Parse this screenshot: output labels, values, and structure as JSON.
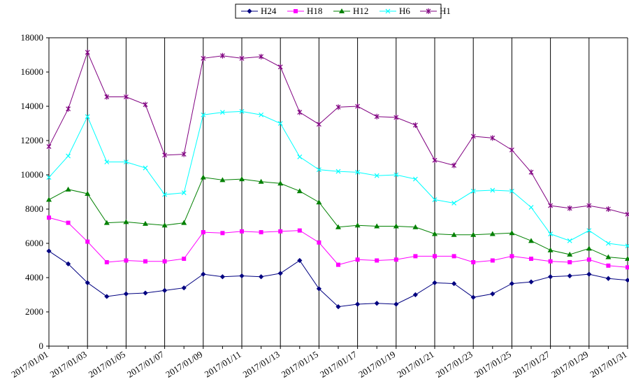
{
  "chart_data": {
    "type": "line",
    "categories": [
      "2017/01/01",
      "2017/01/02",
      "2017/01/03",
      "2017/01/04",
      "2017/01/05",
      "2017/01/06",
      "2017/01/07",
      "2017/01/08",
      "2017/01/09",
      "2017/01/10",
      "2017/01/11",
      "2017/01/12",
      "2017/01/13",
      "2017/01/14",
      "2017/01/15",
      "2017/01/16",
      "2017/01/17",
      "2017/01/18",
      "2017/01/19",
      "2017/01/20",
      "2017/01/21",
      "2017/01/22",
      "2017/01/23",
      "2017/01/24",
      "2017/01/25",
      "2017/01/26",
      "2017/01/27",
      "2017/01/28",
      "2017/01/29",
      "2017/01/30",
      "2017/01/31"
    ],
    "x_tick_labels": [
      "2017/01/01",
      "2017/01/03",
      "2017/01/05",
      "2017/01/07",
      "2017/01/09",
      "2017/01/11",
      "2017/01/13",
      "2017/01/15",
      "2017/01/17",
      "2017/01/19",
      "2017/01/21",
      "2017/01/23",
      "2017/01/25",
      "2017/01/27",
      "2017/01/29",
      "2017/01/31"
    ],
    "y_tick_labels": [
      "0",
      "2000",
      "4000",
      "6000",
      "8000",
      "10000",
      "12000",
      "14000",
      "16000",
      "18000"
    ],
    "ylim": [
      0,
      18000
    ],
    "grid": "vertical",
    "legend": "top",
    "title": "",
    "xlabel": "",
    "ylabel": "",
    "series": [
      {
        "name": "H24",
        "color": "#000080",
        "marker": "diamond",
        "values": [
          5550,
          4800,
          3700,
          2900,
          3050,
          3100,
          3250,
          3400,
          4200,
          4050,
          4100,
          4050,
          4250,
          5000,
          3350,
          2300,
          2450,
          2500,
          2450,
          3000,
          3700,
          3650,
          2850,
          3050,
          3650,
          3750,
          4050,
          4100,
          4200,
          3950,
          3850
        ]
      },
      {
        "name": "H18",
        "color": "#ff00ff",
        "marker": "square",
        "values": [
          7500,
          7200,
          6100,
          4900,
          5000,
          4950,
          4950,
          5100,
          6650,
          6600,
          6700,
          6650,
          6700,
          6750,
          6050,
          4750,
          5050,
          5000,
          5050,
          5250,
          5250,
          5250,
          4900,
          5000,
          5250,
          5100,
          4950,
          4900,
          5050,
          4700,
          4600
        ]
      },
      {
        "name": "H12",
        "color": "#008000",
        "marker": "triangle",
        "values": [
          8550,
          9150,
          8900,
          7200,
          7250,
          7150,
          7050,
          7200,
          9850,
          9700,
          9750,
          9600,
          9500,
          9050,
          8400,
          6950,
          7050,
          7000,
          7000,
          6950,
          6550,
          6500,
          6500,
          6550,
          6600,
          6150,
          5600,
          5350,
          5700,
          5200,
          5100
        ]
      },
      {
        "name": "H6",
        "color": "#00ffff",
        "marker": "x",
        "values": [
          9850,
          11100,
          13400,
          10750,
          10750,
          10400,
          8850,
          8950,
          13500,
          13650,
          13700,
          13500,
          13000,
          11050,
          10300,
          10200,
          10150,
          9950,
          10000,
          9750,
          8550,
          8350,
          9050,
          9100,
          9050,
          8100,
          6550,
          6150,
          6750,
          6000,
          5850
        ]
      },
      {
        "name": "H1",
        "color": "#800080",
        "marker": "star",
        "values": [
          11650,
          13850,
          17150,
          14550,
          14550,
          14100,
          11150,
          11200,
          16800,
          16950,
          16800,
          16900,
          16300,
          13650,
          12950,
          13950,
          14000,
          13400,
          13350,
          12900,
          10850,
          10550,
          12250,
          12150,
          11450,
          10150,
          8200,
          8050,
          8200,
          8000,
          7700
        ]
      }
    ]
  }
}
